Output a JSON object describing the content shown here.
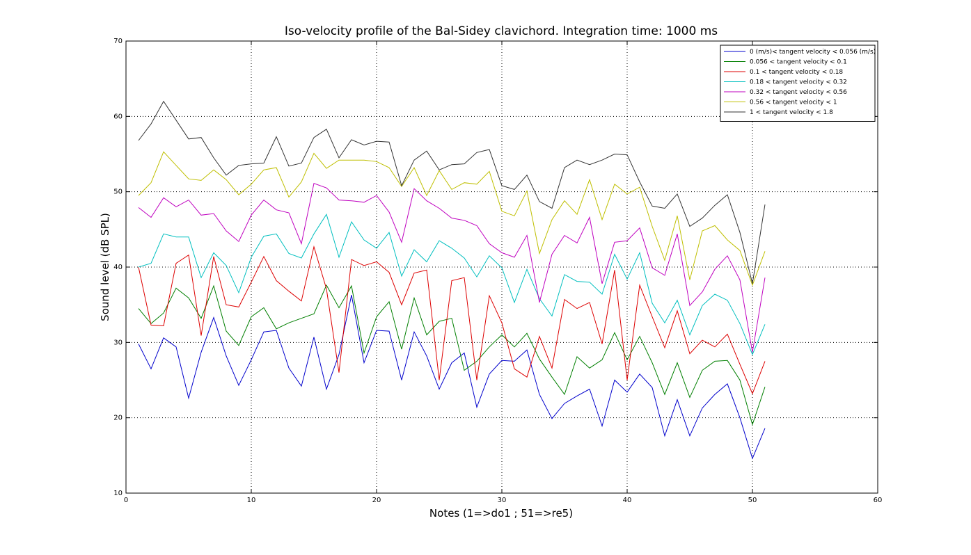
{
  "chart_data": {
    "type": "line",
    "title": "Iso-velocity profile of the Bal-Sidey clavichord. Integration time: 1000 ms",
    "xlabel": "Notes (1=>do1 ; 51=>re5)",
    "ylabel": "Sound level (dB SPL)",
    "xlim": [
      0,
      60
    ],
    "ylim": [
      10,
      70
    ],
    "xticks": [
      0,
      10,
      20,
      30,
      40,
      50,
      60
    ],
    "yticks": [
      10,
      20,
      30,
      40,
      50,
      60,
      70
    ],
    "grid": true,
    "legend_position": "top-right",
    "x": [
      1,
      2,
      3,
      4,
      5,
      6,
      7,
      8,
      9,
      10,
      11,
      12,
      13,
      14,
      15,
      16,
      17,
      18,
      19,
      20,
      21,
      22,
      23,
      24,
      25,
      26,
      27,
      28,
      29,
      30,
      31,
      32,
      33,
      34,
      35,
      36,
      37,
      38,
      39,
      40,
      41,
      42,
      43,
      44,
      45,
      46,
      47,
      48,
      49,
      50,
      51
    ],
    "series": [
      {
        "name": "0 (m/s)< tangent velocity < 0.056 (m/s)",
        "color": "#0000cc",
        "values": [
          29.8,
          26.5,
          30.6,
          29.4,
          22.6,
          28.7,
          33.3,
          28.2,
          24.3,
          27.7,
          31.4,
          31.6,
          26.6,
          24.2,
          30.7,
          23.8,
          28.4,
          36.3,
          27.3,
          31.6,
          31.5,
          25.0,
          31.4,
          28.2,
          23.8,
          27.3,
          28.6,
          21.4,
          25.8,
          27.6,
          27.5,
          29.0,
          23.1,
          19.9,
          21.9,
          22.9,
          23.8,
          18.9,
          25.0,
          23.4,
          25.8,
          24.0,
          17.6,
          22.4,
          17.6,
          21.3,
          23.1,
          24.5,
          20.0,
          14.6,
          18.6
        ]
      },
      {
        "name": "0.056 < tangent velocity < 0.1",
        "color": "#007f00",
        "values": [
          34.5,
          32.5,
          33.9,
          37.2,
          35.9,
          33.2,
          37.5,
          31.5,
          29.6,
          33.4,
          34.6,
          31.8,
          32.6,
          33.2,
          33.8,
          37.6,
          34.6,
          37.5,
          28.6,
          33.4,
          35.4,
          29.1,
          35.9,
          31.0,
          32.8,
          33.2,
          26.3,
          27.5,
          29.4,
          31.0,
          29.4,
          31.2,
          27.8,
          25.4,
          23.1,
          28.1,
          26.6,
          27.7,
          31.3,
          27.7,
          30.8,
          27.3,
          23.1,
          27.3,
          22.7,
          26.3,
          27.5,
          27.6,
          25.0,
          19.1,
          24.1
        ]
      },
      {
        "name": "0.1 < tangent velocity < 0.18",
        "color": "#dd0000",
        "values": [
          40.0,
          32.3,
          32.2,
          40.5,
          41.6,
          30.9,
          41.4,
          35.0,
          34.7,
          38.0,
          41.4,
          38.2,
          36.8,
          35.5,
          42.7,
          37.1,
          26.0,
          41.0,
          40.2,
          40.7,
          39.3,
          35.0,
          39.2,
          39.6,
          25.0,
          38.2,
          38.6,
          25.0,
          36.2,
          32.6,
          26.5,
          25.4,
          30.8,
          26.6,
          35.7,
          34.5,
          35.3,
          29.8,
          39.6,
          25.0,
          37.6,
          33.4,
          29.3,
          34.2,
          28.5,
          30.3,
          29.4,
          31.1,
          27.1,
          23.2,
          27.5
        ]
      },
      {
        "name": "0.18 < tangent velocity < 0.32",
        "color": "#00bfbf",
        "values": [
          40.0,
          40.5,
          44.4,
          44.0,
          44.0,
          38.6,
          41.9,
          40.2,
          36.6,
          41.3,
          44.1,
          44.4,
          41.8,
          41.2,
          44.4,
          47.0,
          41.3,
          46.0,
          43.6,
          42.5,
          44.6,
          38.8,
          42.3,
          40.7,
          43.5,
          42.5,
          41.2,
          38.7,
          41.5,
          39.9,
          35.3,
          39.7,
          35.8,
          33.5,
          39.0,
          38.1,
          38.0,
          36.4,
          41.7,
          38.4,
          41.9,
          35.2,
          32.6,
          35.6,
          31.0,
          34.9,
          36.4,
          35.6,
          32.5,
          28.4,
          32.4
        ]
      },
      {
        "name": "0.32 < tangent velocity < 0.56",
        "color": "#bf00bf",
        "values": [
          47.9,
          46.6,
          49.2,
          48.0,
          48.9,
          46.9,
          47.1,
          44.8,
          43.4,
          46.9,
          48.9,
          47.6,
          47.2,
          43.1,
          51.1,
          50.5,
          48.9,
          48.8,
          48.6,
          49.5,
          47.3,
          43.3,
          50.4,
          48.8,
          47.8,
          46.5,
          46.2,
          45.5,
          43.1,
          41.9,
          41.3,
          44.2,
          35.3,
          41.7,
          44.2,
          43.2,
          46.6,
          37.8,
          43.3,
          43.5,
          45.2,
          39.9,
          38.9,
          44.4,
          34.9,
          36.7,
          39.7,
          41.5,
          38.3,
          28.7,
          38.6
        ]
      },
      {
        "name": "0.56 < tangent velocity < 1",
        "color": "#bfbf00",
        "values": [
          49.5,
          51.2,
          55.3,
          53.5,
          51.7,
          51.5,
          52.9,
          51.6,
          49.6,
          51.0,
          52.9,
          53.2,
          49.3,
          51.3,
          55.1,
          53.1,
          54.2,
          54.2,
          54.2,
          54.0,
          53.2,
          50.7,
          53.2,
          49.5,
          52.8,
          50.3,
          51.2,
          51.0,
          52.7,
          47.4,
          46.8,
          50.1,
          41.8,
          46.3,
          48.8,
          47.0,
          51.6,
          46.3,
          51.0,
          49.7,
          50.6,
          45.4,
          40.9,
          46.8,
          38.3,
          44.8,
          45.5,
          43.6,
          42.2,
          37.6,
          42.1
        ]
      },
      {
        "name": "1 < tangent velocity < 1.8",
        "color": "#333333",
        "values": [
          56.8,
          59.0,
          62.0,
          59.5,
          57.0,
          57.2,
          54.5,
          52.2,
          53.5,
          53.7,
          53.8,
          57.3,
          53.4,
          53.8,
          57.2,
          58.3,
          54.5,
          56.9,
          56.2,
          56.7,
          56.6,
          50.8,
          54.2,
          55.4,
          52.9,
          53.6,
          53.7,
          55.2,
          55.6,
          50.8,
          50.3,
          52.2,
          48.7,
          47.8,
          53.2,
          54.2,
          53.6,
          54.2,
          55.0,
          54.9,
          51.3,
          48.1,
          47.8,
          49.7,
          45.4,
          46.5,
          48.2,
          49.6,
          44.6,
          37.8,
          48.3
        ]
      }
    ]
  }
}
